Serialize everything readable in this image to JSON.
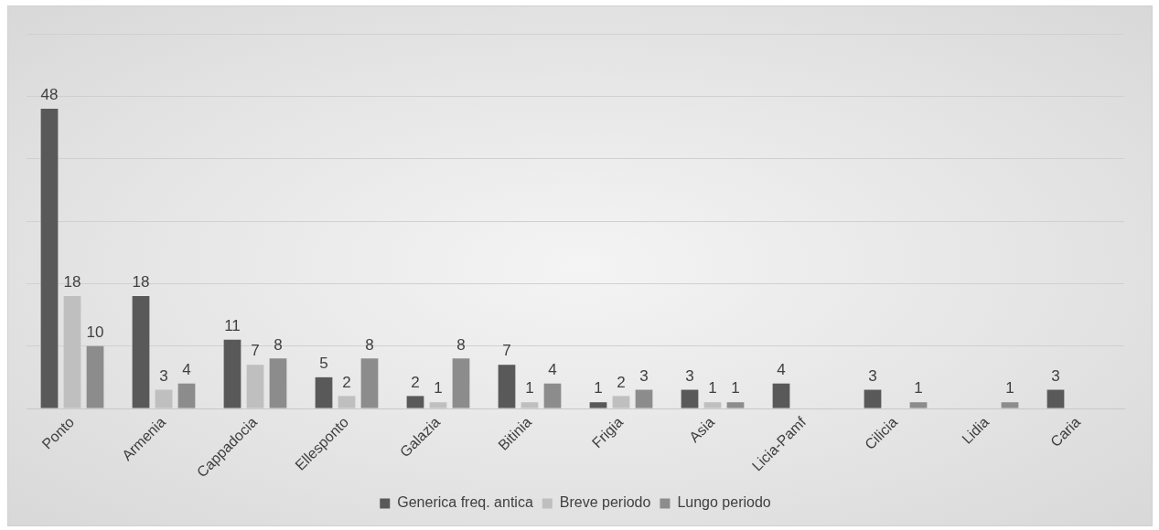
{
  "chart_data": {
    "type": "bar",
    "categories": [
      "Ponto",
      "Armenia",
      "Cappadocia",
      "Ellesponto",
      "Galazia",
      "Bitinia",
      "Frigia",
      "Asia",
      "Licia-Pamf",
      "Cilicia",
      "Lidia",
      "Caria"
    ],
    "series": [
      {
        "name": "Generica freq. antica",
        "color": "#595959",
        "values": [
          48,
          18,
          11,
          5,
          2,
          7,
          1,
          3,
          4,
          3,
          null,
          3
        ]
      },
      {
        "name": "Breve periodo",
        "color": "#bfbfbf",
        "values": [
          18,
          3,
          7,
          2,
          1,
          1,
          2,
          1,
          null,
          null,
          null,
          null
        ]
      },
      {
        "name": "Lungo periodo",
        "color": "#8c8c8c",
        "values": [
          10,
          4,
          8,
          8,
          8,
          4,
          3,
          1,
          null,
          1,
          1,
          null
        ]
      }
    ],
    "ylim": [
      0,
      60
    ],
    "yticks": [
      {
        "value": 0,
        "label": null
      },
      {
        "value": 10,
        "label": null
      },
      {
        "value": 20,
        "label": null
      },
      {
        "value": 30,
        "label": null
      },
      {
        "value": 40,
        "label": null
      },
      {
        "value": 50,
        "label": null
      },
      {
        "value": 60,
        "label": null
      }
    ],
    "tick_labels": "x",
    "grid": "y",
    "legend": "bottom",
    "data_labels": true
  }
}
